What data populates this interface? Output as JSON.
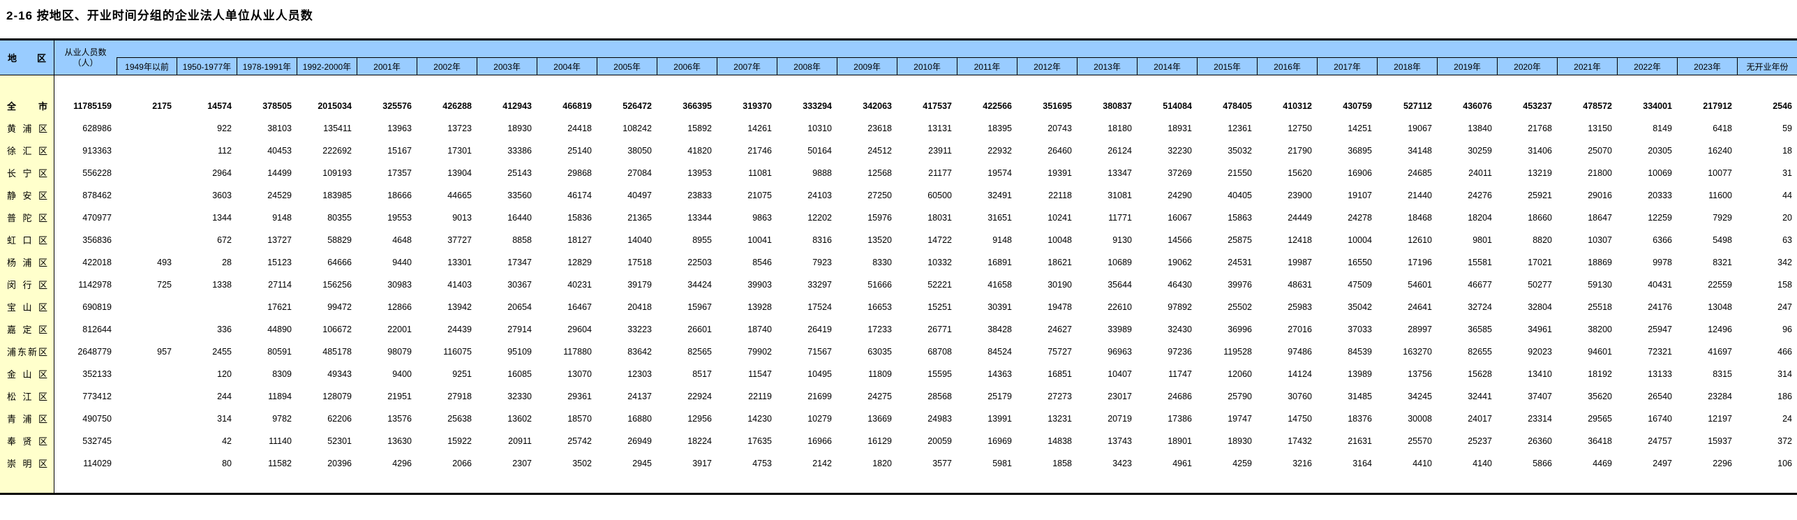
{
  "title": "2-16  按地区、开业时间分组的企业法人单位从业人员数",
  "colors": {
    "header_bg": "#99CCFF",
    "region_col_bg": "#FFFFCC",
    "border": "#000000"
  },
  "table": {
    "header": {
      "region": "地区",
      "total_label": [
        "从业人员数",
        "（人）"
      ],
      "year_columns": [
        "1949年以前",
        "1950-1977年",
        "1978-1991年",
        "1992-2000年",
        "2001年",
        "2002年",
        "2003年",
        "2004年",
        "2005年",
        "2006年",
        "2007年",
        "2008年",
        "2009年",
        "2010年",
        "2011年",
        "2012年",
        "2013年",
        "2014年",
        "2015年",
        "2016年",
        "2017年",
        "2018年",
        "2019年",
        "2020年",
        "2021年",
        "2022年",
        "2023年",
        "无开业年份"
      ]
    },
    "rows": [
      {
        "region": "全市",
        "bold": true,
        "values": [
          "11785159",
          "2175",
          "14574",
          "378505",
          "2015034",
          "325576",
          "426288",
          "412943",
          "466819",
          "526472",
          "366395",
          "319370",
          "333294",
          "342063",
          "417537",
          "422566",
          "351695",
          "380837",
          "514084",
          "478405",
          "410312",
          "430759",
          "527112",
          "436076",
          "453237",
          "478572",
          "334001",
          "217912",
          "2546"
        ]
      },
      {
        "region": "黄浦区",
        "bold": false,
        "values": [
          "628986",
          "",
          "922",
          "38103",
          "135411",
          "13963",
          "13723",
          "18930",
          "24418",
          "108242",
          "15892",
          "14261",
          "10310",
          "23618",
          "13131",
          "18395",
          "20743",
          "18180",
          "18931",
          "12361",
          "12750",
          "14251",
          "19067",
          "13840",
          "21768",
          "13150",
          "8149",
          "6418",
          "59"
        ]
      },
      {
        "region": "徐汇区",
        "bold": false,
        "values": [
          "913363",
          "",
          "112",
          "40453",
          "222692",
          "15167",
          "17301",
          "33386",
          "25140",
          "38050",
          "41820",
          "21746",
          "50164",
          "24512",
          "23911",
          "22932",
          "26460",
          "26124",
          "32230",
          "35032",
          "21790",
          "36895",
          "34148",
          "30259",
          "31406",
          "25070",
          "20305",
          "16240",
          "18"
        ]
      },
      {
        "region": "长宁区",
        "bold": false,
        "values": [
          "556228",
          "",
          "2964",
          "14499",
          "109193",
          "17357",
          "13904",
          "25143",
          "29868",
          "27084",
          "13953",
          "11081",
          "9888",
          "12568",
          "21177",
          "19574",
          "19391",
          "13347",
          "37269",
          "21550",
          "15620",
          "16906",
          "24685",
          "24011",
          "13219",
          "21800",
          "10069",
          "10077",
          "31"
        ]
      },
      {
        "region": "静安区",
        "bold": false,
        "values": [
          "878462",
          "",
          "3603",
          "24529",
          "183985",
          "18666",
          "44665",
          "33560",
          "46174",
          "40497",
          "23833",
          "21075",
          "24103",
          "27250",
          "60500",
          "32491",
          "22118",
          "31081",
          "24290",
          "40405",
          "23900",
          "19107",
          "21440",
          "24276",
          "25921",
          "29016",
          "20333",
          "11600",
          "44"
        ]
      },
      {
        "region": "普陀区",
        "bold": false,
        "values": [
          "470977",
          "",
          "1344",
          "9148",
          "80355",
          "19553",
          "9013",
          "16440",
          "15836",
          "21365",
          "13344",
          "9863",
          "12202",
          "15976",
          "18031",
          "31651",
          "10241",
          "11771",
          "16067",
          "15863",
          "24449",
          "24278",
          "18468",
          "18204",
          "18660",
          "18647",
          "12259",
          "7929",
          "20"
        ]
      },
      {
        "region": "虹口区",
        "bold": false,
        "values": [
          "356836",
          "",
          "672",
          "13727",
          "58829",
          "4648",
          "37727",
          "8858",
          "18127",
          "14040",
          "8955",
          "10041",
          "8316",
          "13520",
          "14722",
          "9148",
          "10048",
          "9130",
          "14566",
          "25875",
          "12418",
          "10004",
          "12610",
          "9801",
          "8820",
          "10307",
          "6366",
          "5498",
          "63"
        ]
      },
      {
        "region": "杨浦区",
        "bold": false,
        "values": [
          "422018",
          "493",
          "28",
          "15123",
          "64666",
          "9440",
          "13301",
          "17347",
          "12829",
          "17518",
          "22503",
          "8546",
          "7923",
          "8330",
          "10332",
          "16891",
          "18621",
          "10689",
          "19062",
          "24531",
          "19987",
          "16550",
          "17196",
          "15581",
          "17021",
          "18869",
          "9978",
          "8321",
          "342"
        ]
      },
      {
        "region": "闵行区",
        "bold": false,
        "values": [
          "1142978",
          "725",
          "1338",
          "27114",
          "156256",
          "30983",
          "41403",
          "30367",
          "40231",
          "39179",
          "34424",
          "39903",
          "33297",
          "51666",
          "52221",
          "41658",
          "30190",
          "35644",
          "46430",
          "39976",
          "48631",
          "47509",
          "54601",
          "46677",
          "50277",
          "59130",
          "40431",
          "22559",
          "158"
        ]
      },
      {
        "region": "宝山区",
        "bold": false,
        "values": [
          "690819",
          "",
          "",
          "17621",
          "99472",
          "12866",
          "13942",
          "20654",
          "16467",
          "20418",
          "15967",
          "13928",
          "17524",
          "16653",
          "15251",
          "30391",
          "19478",
          "22610",
          "97892",
          "25502",
          "25983",
          "35042",
          "24641",
          "32724",
          "32804",
          "25518",
          "24176",
          "13048",
          "247"
        ]
      },
      {
        "region": "嘉定区",
        "bold": false,
        "values": [
          "812644",
          "",
          "336",
          "44890",
          "106672",
          "22001",
          "24439",
          "27914",
          "29604",
          "33223",
          "26601",
          "18740",
          "26419",
          "17233",
          "26771",
          "38428",
          "24627",
          "33989",
          "32430",
          "36996",
          "27016",
          "37033",
          "28997",
          "36585",
          "34961",
          "38200",
          "25947",
          "12496",
          "96"
        ]
      },
      {
        "region": "浦东新区",
        "bold": false,
        "values": [
          "2648779",
          "957",
          "2455",
          "80591",
          "485178",
          "98079",
          "116075",
          "95109",
          "117880",
          "83642",
          "82565",
          "79902",
          "71567",
          "63035",
          "68708",
          "84524",
          "75727",
          "96963",
          "97236",
          "119528",
          "97486",
          "84539",
          "163270",
          "82655",
          "92023",
          "94601",
          "72321",
          "41697",
          "466"
        ]
      },
      {
        "region": "金山区",
        "bold": false,
        "values": [
          "352133",
          "",
          "120",
          "8309",
          "49343",
          "9400",
          "9251",
          "16085",
          "13070",
          "12303",
          "8517",
          "11547",
          "10495",
          "11809",
          "15595",
          "14363",
          "16851",
          "10407",
          "11747",
          "12060",
          "14124",
          "13989",
          "13756",
          "15628",
          "13410",
          "18192",
          "13133",
          "8315",
          "314"
        ]
      },
      {
        "region": "松江区",
        "bold": false,
        "values": [
          "773412",
          "",
          "244",
          "11894",
          "128079",
          "21951",
          "27918",
          "32330",
          "29361",
          "24137",
          "22924",
          "22119",
          "21699",
          "24275",
          "28568",
          "25179",
          "27273",
          "23017",
          "24686",
          "25790",
          "30760",
          "31485",
          "34245",
          "32441",
          "37407",
          "35620",
          "26540",
          "23284",
          "186"
        ]
      },
      {
        "region": "青浦区",
        "bold": false,
        "values": [
          "490750",
          "",
          "314",
          "9782",
          "62206",
          "13576",
          "25638",
          "13602",
          "18570",
          "16880",
          "12956",
          "14230",
          "10279",
          "13669",
          "24983",
          "13991",
          "13231",
          "20719",
          "17386",
          "19747",
          "14750",
          "18376",
          "30008",
          "24017",
          "23314",
          "29565",
          "16740",
          "12197",
          "24"
        ]
      },
      {
        "region": "奉贤区",
        "bold": false,
        "values": [
          "532745",
          "",
          "42",
          "11140",
          "52301",
          "13630",
          "15922",
          "20911",
          "25742",
          "26949",
          "18224",
          "17635",
          "16966",
          "16129",
          "20059",
          "16969",
          "14838",
          "13743",
          "18901",
          "18930",
          "17432",
          "21631",
          "25570",
          "25237",
          "26360",
          "36418",
          "24757",
          "15937",
          "372"
        ]
      },
      {
        "region": "崇明区",
        "bold": false,
        "values": [
          "114029",
          "",
          "80",
          "11582",
          "20396",
          "4296",
          "2066",
          "2307",
          "3502",
          "2945",
          "3917",
          "4753",
          "2142",
          "1820",
          "3577",
          "5981",
          "1858",
          "3423",
          "4961",
          "4259",
          "3216",
          "3164",
          "4410",
          "4140",
          "5866",
          "4469",
          "2497",
          "2296",
          "106"
        ]
      }
    ]
  }
}
